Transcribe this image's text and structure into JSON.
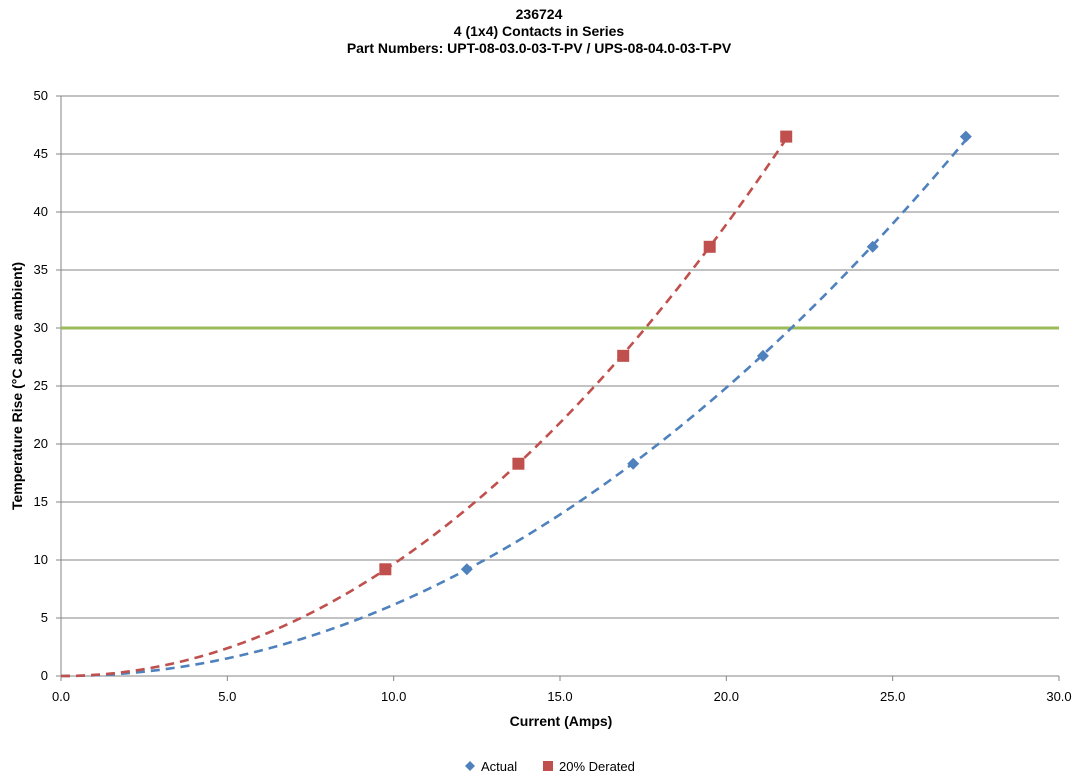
{
  "chart_data": {
    "type": "scatter",
    "title_lines": [
      "236724",
      "4 (1x4) Contacts in Series",
      "Part Numbers: UPT-08-03.0-03-T-PV / UPS-08-04.0-03-T-PV"
    ],
    "xlabel": "Current (Amps)",
    "ylabel": "Temperature Rise (°C above ambient)",
    "xlim": [
      0,
      30
    ],
    "ylim": [
      0,
      50
    ],
    "x_ticks": [
      "0.0",
      "5.0",
      "10.0",
      "15.0",
      "20.0",
      "25.0",
      "30.0"
    ],
    "y_ticks": [
      "0",
      "5",
      "10",
      "15",
      "20",
      "25",
      "30",
      "35",
      "40",
      "45",
      "50"
    ],
    "grid": "horizontal",
    "legend_position": "bottom",
    "reference_line": {
      "y": 30,
      "color": "#9BBB59"
    },
    "series": [
      {
        "name": "Actual",
        "marker": "diamond",
        "color": "#4F81BD",
        "x": [
          12.2,
          17.2,
          21.1,
          24.4,
          27.2
        ],
        "y": [
          9.2,
          18.3,
          27.6,
          37.0,
          46.5
        ],
        "trendline": "dashed"
      },
      {
        "name": "20% Derated",
        "marker": "square",
        "color": "#C0504D",
        "x": [
          9.75,
          13.75,
          16.9,
          19.5,
          21.8
        ],
        "y": [
          9.2,
          18.3,
          27.6,
          37.0,
          46.5
        ],
        "trendline": "dashed"
      }
    ]
  }
}
